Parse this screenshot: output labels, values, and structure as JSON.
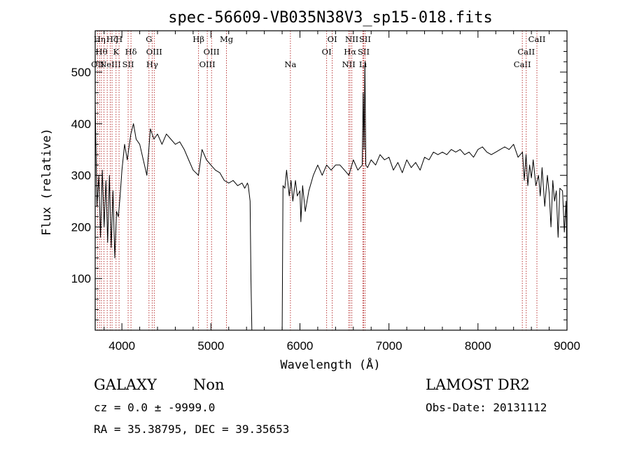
{
  "chart_data": {
    "type": "line",
    "title": "spec-56609-VB035N38V3_sp15-018.fits",
    "xlabel": "Wavelength (Å)",
    "ylabel": "Flux (relative)",
    "xlim": [
      3700,
      9000
    ],
    "ylim": [
      0,
      580
    ],
    "x_ticks": [
      4000,
      5000,
      6000,
      7000,
      8000,
      9000
    ],
    "y_ticks": [
      100,
      200,
      300,
      400,
      500
    ],
    "grid": false,
    "series": [
      {
        "color": "#000000",
        "x": [
          3700,
          3720,
          3740,
          3760,
          3780,
          3800,
          3820,
          3840,
          3860,
          3880,
          3900,
          3920,
          3940,
          3960,
          3980,
          4000,
          4030,
          4060,
          4100,
          4130,
          4160,
          4200,
          4240,
          4280,
          4320,
          4360,
          4400,
          4450,
          4500,
          4550,
          4600,
          4650,
          4700,
          4750,
          4800,
          4860,
          4900,
          4950,
          5000,
          5050,
          5100,
          5150,
          5200,
          5250,
          5300,
          5350,
          5380,
          5410,
          5420,
          5440,
          5450,
          5460,
          5800,
          5810,
          5830,
          5850,
          5880,
          5900,
          5920,
          5950,
          5970,
          6000,
          6010,
          6030,
          6060,
          6100,
          6150,
          6200,
          6250,
          6300,
          6350,
          6400,
          6450,
          6500,
          6550,
          6600,
          6650,
          6700,
          6710,
          6720,
          6730,
          6740,
          6760,
          6800,
          6850,
          6900,
          6950,
          7000,
          7050,
          7100,
          7150,
          7200,
          7250,
          7300,
          7350,
          7400,
          7450,
          7500,
          7550,
          7600,
          7650,
          7700,
          7750,
          7800,
          7850,
          7900,
          7950,
          8000,
          8050,
          8100,
          8150,
          8200,
          8250,
          8300,
          8350,
          8400,
          8450,
          8500,
          8520,
          8540,
          8560,
          8580,
          8600,
          8620,
          8650,
          8680,
          8700,
          8720,
          8750,
          8780,
          8800,
          8820,
          8840,
          8860,
          8880,
          8900,
          8920,
          8950,
          8970,
          8990,
          9000
        ],
        "y": [
          440,
          240,
          300,
          180,
          310,
          200,
          290,
          170,
          300,
          160,
          270,
          140,
          230,
          220,
          260,
          310,
          360,
          330,
          380,
          400,
          370,
          360,
          330,
          300,
          390,
          370,
          380,
          360,
          380,
          370,
          360,
          365,
          350,
          330,
          310,
          300,
          350,
          330,
          320,
          310,
          305,
          290,
          285,
          290,
          280,
          285,
          275,
          285,
          280,
          250,
          100,
          0,
          0,
          280,
          275,
          310,
          260,
          290,
          250,
          290,
          260,
          270,
          210,
          280,
          230,
          270,
          300,
          320,
          300,
          320,
          310,
          320,
          320,
          310,
          300,
          330,
          310,
          320,
          460,
          350,
          520,
          320,
          315,
          330,
          320,
          340,
          330,
          335,
          310,
          325,
          305,
          330,
          315,
          325,
          310,
          335,
          330,
          345,
          340,
          345,
          340,
          350,
          345,
          350,
          340,
          345,
          335,
          350,
          355,
          345,
          340,
          345,
          350,
          355,
          350,
          360,
          335,
          345,
          290,
          340,
          280,
          320,
          295,
          330,
          280,
          300,
          260,
          315,
          240,
          300,
          265,
          200,
          290,
          250,
          270,
          180,
          275,
          270,
          190,
          250,
          120
        ],
        "name": ""
      }
    ],
    "line_markers": {
      "color": "#b22222",
      "lines": [
        {
          "x": 3727,
          "label": "OII",
          "row": 3
        },
        {
          "x": 3750,
          "label": "Hη",
          "row": 1
        },
        {
          "x": 3771,
          "label": "Hθ",
          "row": 2
        },
        {
          "x": 3798,
          "label": "",
          "row": 0
        },
        {
          "x": 3835,
          "label": "",
          "row": 0
        },
        {
          "x": 3869,
          "label": "NeIII",
          "row": 3
        },
        {
          "x": 3889,
          "label": "Hζ",
          "row": 0
        },
        {
          "x": 3934,
          "label": "K",
          "row": 2
        },
        {
          "x": 3968,
          "label": "H",
          "row": 1
        },
        {
          "x": 4070,
          "label": "SII",
          "row": 3
        },
        {
          "x": 4102,
          "label": "Hδ",
          "row": 2
        },
        {
          "x": 4304,
          "label": "G",
          "row": 1
        },
        {
          "x": 4340,
          "label": "Hγ",
          "row": 3
        },
        {
          "x": 4363,
          "label": "OIII",
          "row": 2
        },
        {
          "x": 4861,
          "label": "Hβ",
          "row": 1
        },
        {
          "x": 4959,
          "label": "OIII",
          "row": 3
        },
        {
          "x": 5007,
          "label": "OIII",
          "row": 2
        },
        {
          "x": 5175,
          "label": "Mg",
          "row": 1
        },
        {
          "x": 5893,
          "label": "Na",
          "row": 3
        },
        {
          "x": 6300,
          "label": "OI",
          "row": 2
        },
        {
          "x": 6363,
          "label": "OI",
          "row": 1
        },
        {
          "x": 6548,
          "label": "NII",
          "row": 3
        },
        {
          "x": 6563,
          "label": "Hα",
          "row": 2
        },
        {
          "x": 6583,
          "label": "NII",
          "row": 1
        },
        {
          "x": 6708,
          "label": "Li",
          "row": 3
        },
        {
          "x": 6716,
          "label": "SII",
          "row": 2
        },
        {
          "x": 6731,
          "label": "SII",
          "row": 1
        },
        {
          "x": 8498,
          "label": "CaII",
          "row": 3
        },
        {
          "x": 8542,
          "label": "CaII",
          "row": 2
        },
        {
          "x": 8662,
          "label": "CaII",
          "row": 1
        }
      ]
    }
  },
  "footer": {
    "object_class": "GALAXY",
    "subclass": "Non",
    "survey": "LAMOST DR2",
    "redshift_line": "cz = 0.0 ± -9999.0",
    "obs_date": "Obs-Date: 20131112",
    "coords": "RA =  35.38795, DEC =  39.35653"
  }
}
